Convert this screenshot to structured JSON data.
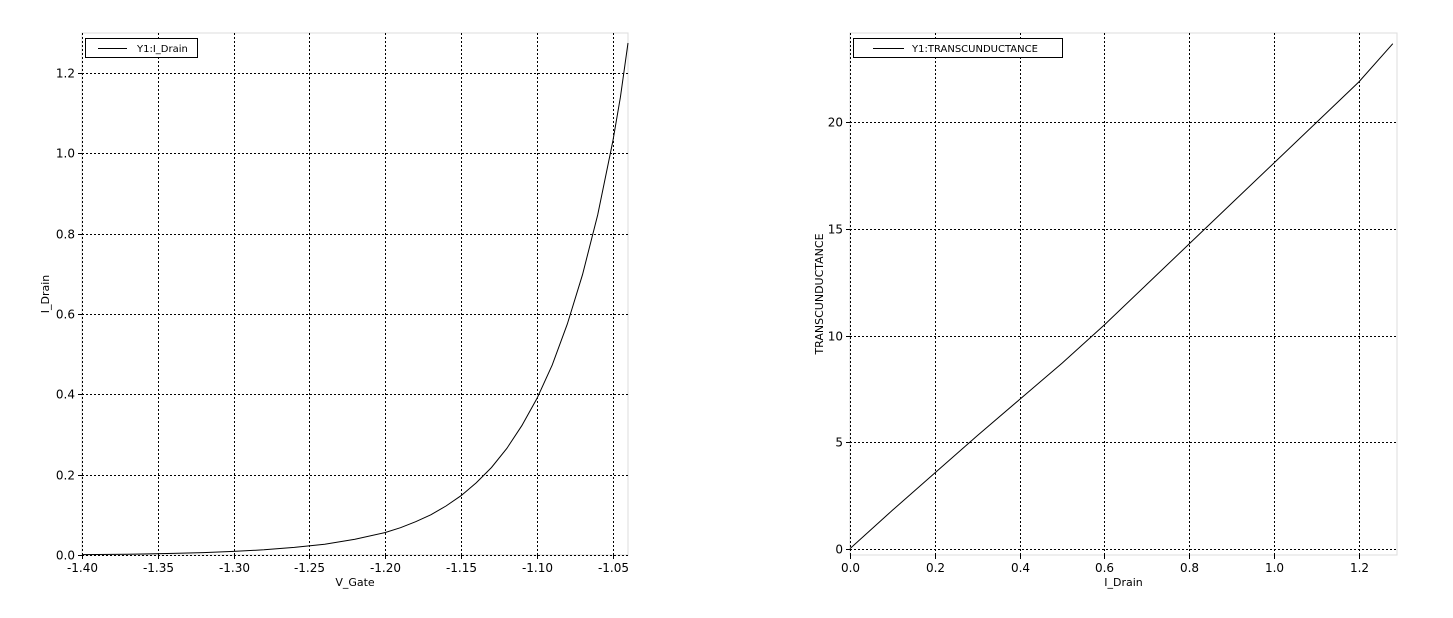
{
  "chart_data": [
    {
      "type": "line",
      "xlabel": "V_Gate",
      "ylabel": "I_Drain",
      "xlim": [
        -1.4,
        -1.04
      ],
      "ylim": [
        0.0,
        1.3
      ],
      "xticks": [
        -1.4,
        -1.35,
        -1.3,
        -1.25,
        -1.2,
        -1.15,
        -1.1,
        -1.05
      ],
      "xtick_labels": [
        "-1.40",
        "-1.35",
        "-1.30",
        "-1.25",
        "-1.20",
        "-1.15",
        "-1.10",
        "-1.05"
      ],
      "yticks": [
        0.0,
        0.2,
        0.4,
        0.6,
        0.8,
        1.0,
        1.2
      ],
      "ytick_labels": [
        "0.0",
        "0.2",
        "0.4",
        "0.6",
        "0.8",
        "1.0",
        "1.2"
      ],
      "grid": true,
      "legend_position": "top-left",
      "series": [
        {
          "name": "Y1:I_Drain",
          "x": [
            -1.4,
            -1.38,
            -1.36,
            -1.34,
            -1.32,
            -1.3,
            -1.28,
            -1.26,
            -1.24,
            -1.22,
            -1.2,
            -1.19,
            -1.18,
            -1.17,
            -1.16,
            -1.15,
            -1.14,
            -1.13,
            -1.12,
            -1.11,
            -1.1,
            -1.09,
            -1.08,
            -1.07,
            -1.06,
            -1.05,
            -1.045,
            -1.04
          ],
          "y": [
            0.001,
            0.0015,
            0.0025,
            0.004,
            0.006,
            0.009,
            0.013,
            0.019,
            0.027,
            0.039,
            0.056,
            0.068,
            0.083,
            0.1,
            0.122,
            0.148,
            0.18,
            0.218,
            0.265,
            0.322,
            0.39,
            0.473,
            0.575,
            0.698,
            0.847,
            1.03,
            1.14,
            1.275
          ]
        }
      ]
    },
    {
      "type": "line",
      "xlabel": "I_Drain",
      "ylabel": "TRANSCUNDUCTANCE",
      "xlim": [
        0.0,
        1.29
      ],
      "ylim": [
        -0.3,
        24.2
      ],
      "xticks": [
        0.0,
        0.2,
        0.4,
        0.6,
        0.8,
        1.0,
        1.2
      ],
      "xtick_labels": [
        "0.0",
        "0.2",
        "0.4",
        "0.6",
        "0.8",
        "1.0",
        "1.2"
      ],
      "yticks": [
        0,
        5,
        10,
        15,
        20
      ],
      "ytick_labels": [
        "0",
        "5",
        "10",
        "15",
        "20"
      ],
      "grid": true,
      "legend_position": "top-left",
      "series": [
        {
          "name": "Y1:TRANSCUNDUCTANCE",
          "x": [
            0.0,
            0.1,
            0.2,
            0.3,
            0.4,
            0.5,
            0.6,
            0.7,
            0.8,
            0.9,
            1.0,
            1.1,
            1.2,
            1.28
          ],
          "y": [
            0.0,
            1.8,
            3.55,
            5.3,
            7.0,
            8.7,
            10.5,
            12.4,
            14.3,
            16.2,
            18.1,
            20.0,
            21.9,
            23.7
          ]
        }
      ]
    }
  ]
}
